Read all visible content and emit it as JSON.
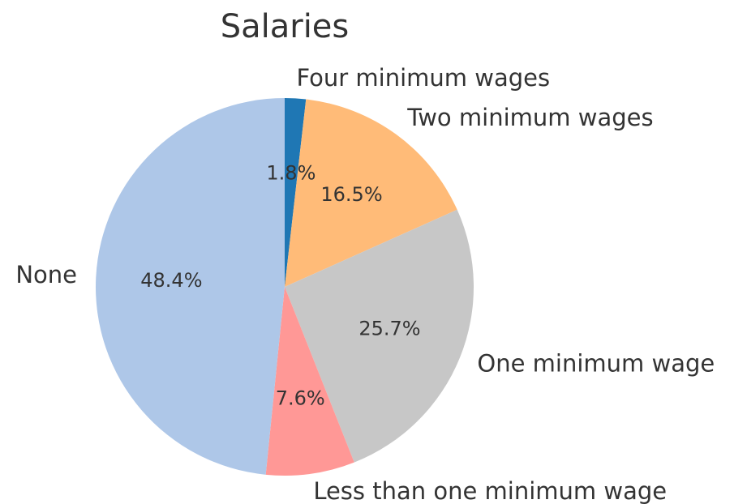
{
  "chart_data": {
    "type": "pie",
    "title": "Salaries",
    "categories": [
      "Four minimum wages",
      "Two minimum wages",
      "One minimum wage",
      "Less than one minimum wage",
      "None"
    ],
    "values": [
      1.8,
      16.5,
      25.7,
      7.6,
      48.4
    ],
    "value_labels": [
      "1.8%",
      "16.5%",
      "25.7%",
      "7.6%",
      "48.4%"
    ],
    "colors": [
      "#1f77b4",
      "#ffbb78",
      "#c7c7c7",
      "#ff9896",
      "#aec7e8"
    ]
  }
}
